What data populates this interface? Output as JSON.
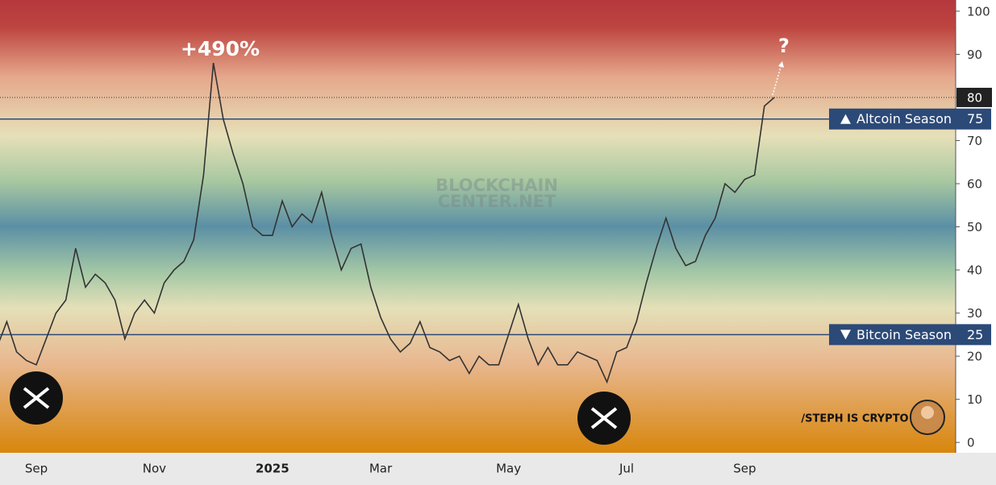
{
  "chart_data": {
    "type": "line",
    "categories": [
      null,
      null,
      null,
      null,
      "Sep",
      null,
      null,
      null,
      null,
      null,
      null,
      null,
      null,
      null,
      null,
      null,
      "Nov",
      null,
      null,
      null,
      null,
      null,
      null,
      null,
      null,
      null,
      null,
      null,
      "2025",
      null,
      null,
      null,
      null,
      null,
      null,
      null,
      null,
      null,
      null,
      "Mar",
      null,
      null,
      null,
      null,
      null,
      null,
      null,
      null,
      null,
      null,
      null,
      null,
      "May",
      null,
      null,
      null,
      null,
      null,
      null,
      null,
      null,
      null,
      null,
      null,
      "Jul",
      null,
      null,
      null,
      null,
      null,
      null,
      null,
      null,
      null,
      null,
      null,
      "Sep",
      null,
      null,
      null
    ],
    "series": [
      {
        "color": "#333333",
        "values": [
          22,
          28,
          21,
          19,
          18,
          24,
          30,
          33,
          45,
          36,
          39,
          37,
          33,
          24,
          30,
          33,
          30,
          37,
          40,
          42,
          47,
          62,
          88,
          75,
          67,
          60,
          50,
          48,
          48,
          56,
          50,
          53,
          51,
          58,
          48,
          40,
          45,
          46,
          36,
          29,
          24,
          21,
          23,
          28,
          22,
          21,
          19,
          20,
          16,
          20,
          18,
          18,
          25,
          32,
          24,
          18,
          22,
          18,
          18,
          21,
          20,
          19,
          14,
          21,
          22,
          28,
          37,
          45,
          52,
          45,
          41,
          42,
          48,
          52,
          60,
          58,
          61,
          62,
          78,
          80
        ]
      }
    ],
    "ylim": [
      -2.4,
      102.6
    ],
    "yticks": [
      0,
      10,
      20,
      30,
      40,
      50,
      60,
      70,
      80,
      90,
      100
    ],
    "thresholds": [
      {
        "label": "Altcoin Season",
        "value": 75
      },
      {
        "label": "Bitcoin Season",
        "value": 25
      }
    ],
    "annotations": [
      "+490%",
      "?"
    ],
    "watermark": [
      "BLOCKCHAIN",
      "CENTER.NET"
    ],
    "signature": "/STEPH IS CRYPTO"
  }
}
